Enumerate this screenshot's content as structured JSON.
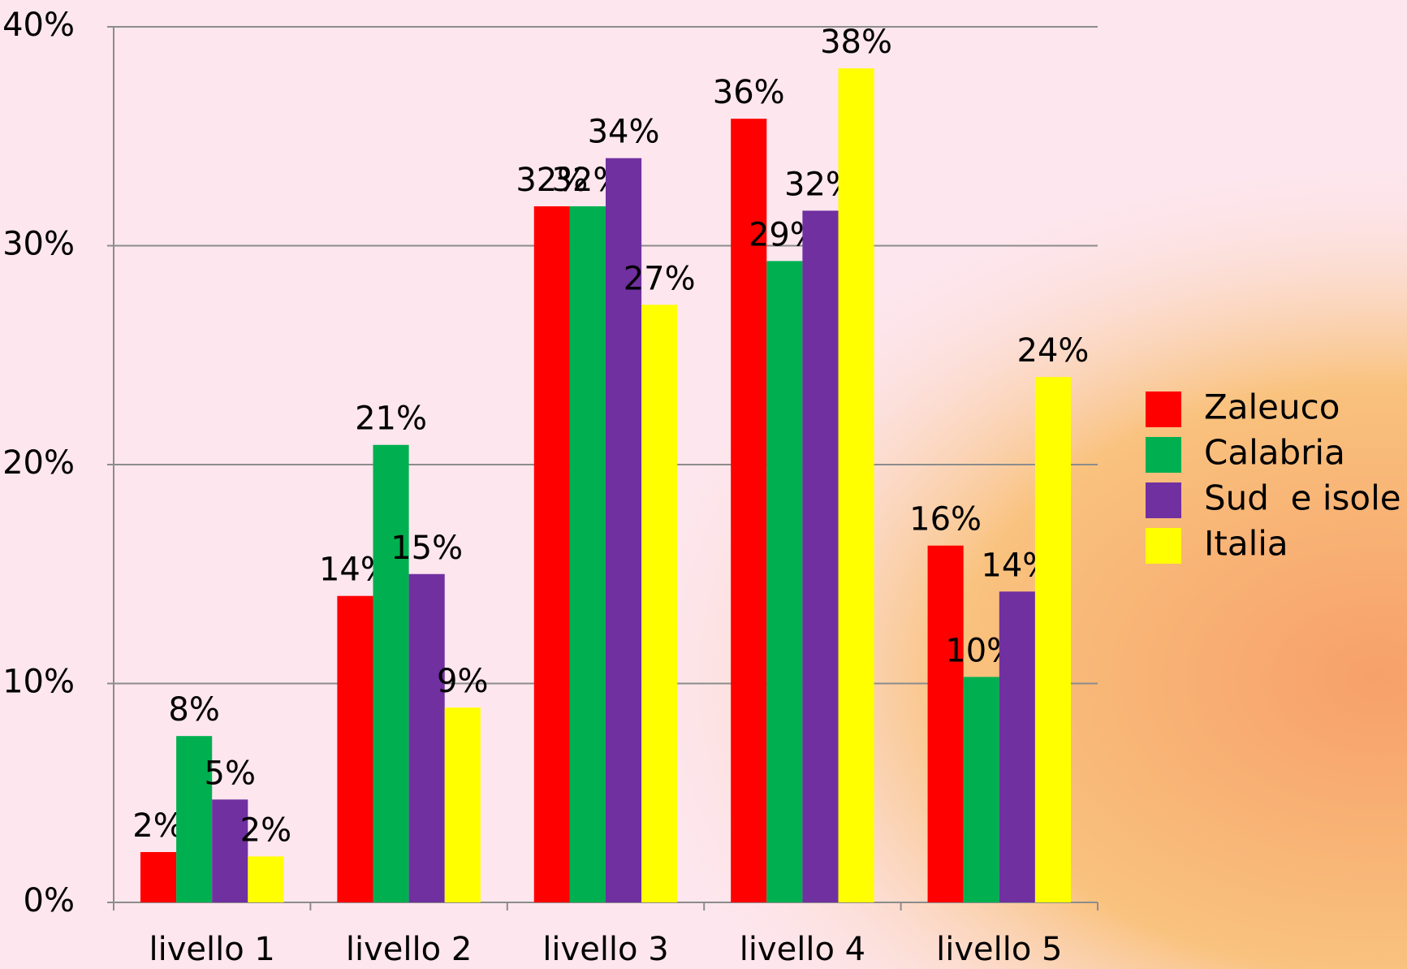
{
  "chart_data": {
    "type": "bar",
    "categories": [
      "livello 1",
      "livello 2",
      "livello 3",
      "livello 4",
      "livello 5"
    ],
    "series": [
      {
        "name": "Zaleuco",
        "color": "#ff0000",
        "values": [
          2.3,
          14.0,
          31.8,
          35.8,
          16.3
        ],
        "value_labels": [
          "2%",
          "14%",
          "32%",
          "36%",
          "16%"
        ]
      },
      {
        "name": "Calabria",
        "color": "#00b050",
        "values": [
          7.6,
          20.9,
          31.8,
          29.3,
          10.3
        ],
        "value_labels": [
          "8%",
          "21%",
          "32%",
          "29%",
          "10%"
        ]
      },
      {
        "name": "Sud  e isole",
        "color": "#7030a0",
        "values": [
          4.7,
          15.0,
          34.0,
          31.6,
          14.2
        ],
        "value_labels": [
          "5%",
          "15%",
          "34%",
          "32%",
          "14%"
        ]
      },
      {
        "name": "Italia",
        "color": "#ffff00",
        "values": [
          2.1,
          8.9,
          27.3,
          38.1,
          24.0
        ],
        "value_labels": [
          "2%",
          "9%",
          "27%",
          "38%",
          "24%"
        ]
      }
    ],
    "ylim": [
      0,
      40
    ],
    "yticks": [
      {
        "value": 0,
        "label": "0%"
      },
      {
        "value": 10,
        "label": "10%"
      },
      {
        "value": 20,
        "label": "20%"
      },
      {
        "value": 30,
        "label": "30%"
      },
      {
        "value": 40,
        "label": "40%"
      }
    ],
    "grid": true,
    "legend": "right"
  }
}
